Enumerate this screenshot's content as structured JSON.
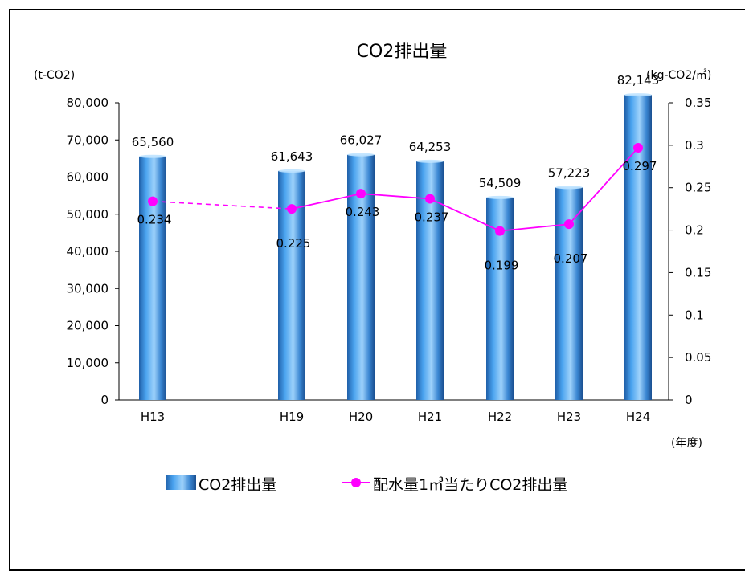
{
  "chart_data": {
    "type": "bar",
    "title": "CO2排出量",
    "left_unit": "(t-CO2)",
    "right_unit": "(kg-CO2/㎥)",
    "x_unit": "(年度)",
    "categories": [
      "H13",
      "H19",
      "H20",
      "H21",
      "H22",
      "H23",
      "H24"
    ],
    "left_axis": {
      "ylim": [
        0,
        80000
      ],
      "ticks": [
        0,
        10000,
        20000,
        30000,
        40000,
        50000,
        60000,
        70000,
        80000
      ],
      "tick_labels": [
        "0",
        "10,000",
        "20,000",
        "30,000",
        "40,000",
        "50,000",
        "60,000",
        "70,000",
        "80,000"
      ]
    },
    "right_axis": {
      "ylim": [
        0,
        0.35
      ],
      "ticks": [
        0,
        0.05,
        0.1,
        0.15,
        0.2,
        0.25,
        0.3,
        0.35
      ],
      "tick_labels": [
        "0",
        "0.05",
        "0.1",
        "0.15",
        "0.2",
        "0.25",
        "0.3",
        "0.35"
      ]
    },
    "series": [
      {
        "name": "CO2排出量",
        "type": "bar",
        "axis": "left",
        "values": [
          65560,
          61643,
          66027,
          64253,
          54509,
          57223,
          82143
        ],
        "labels": [
          "65,560",
          "61,643",
          "66,027",
          "64,253",
          "54,509",
          "57,223",
          "82,143"
        ],
        "color": "#3a8fd8"
      },
      {
        "name": "配水量1㎥当たりCO2排出量",
        "type": "line",
        "axis": "right",
        "values": [
          0.234,
          0.225,
          0.243,
          0.237,
          0.199,
          0.207,
          0.297
        ],
        "labels": [
          "0.234",
          "0.225",
          "0.243",
          "0.237",
          "0.199",
          "0.207",
          "0.297"
        ],
        "color": "#ff00ff",
        "dashed_segment_between": [
          "H13",
          "H19"
        ]
      }
    ],
    "grid": false,
    "legend_position": "bottom"
  }
}
